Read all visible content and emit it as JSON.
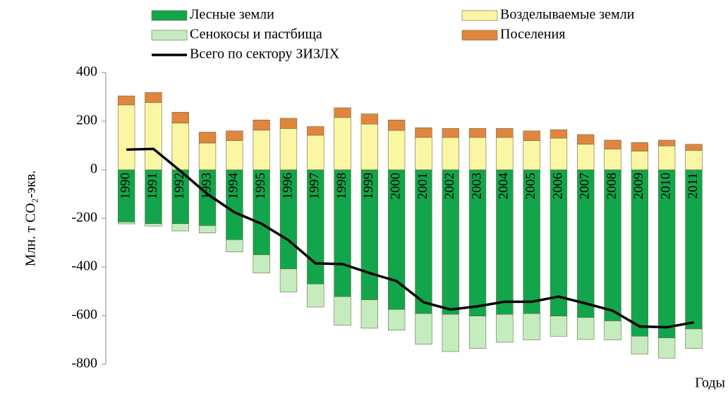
{
  "chart_data": {
    "type": "bar",
    "y_label": "Млн. т CO₂-экв.",
    "x_label": "Годы",
    "categories": [
      "1990",
      "1991",
      "1992",
      "1993",
      "1994",
      "1995",
      "1996",
      "1997",
      "1998",
      "1999",
      "2000",
      "2001",
      "2002",
      "2003",
      "2004",
      "2005",
      "2006",
      "2007",
      "2008",
      "2009",
      "2010",
      "2011"
    ],
    "series": [
      {
        "name": "Лесные земли",
        "color": "#13a54b",
        "values": [
          -215,
          -222,
          -222,
          -230,
          -288,
          -350,
          -408,
          -470,
          -522,
          -535,
          -575,
          -592,
          -595,
          -602,
          -595,
          -592,
          -602,
          -608,
          -622,
          -685,
          -692,
          -655
        ]
      },
      {
        "name": "Возделываемые земли",
        "color": "#fbf6a3",
        "values": [
          267,
          277,
          192,
          110,
          120,
          163,
          170,
          142,
          215,
          188,
          162,
          133,
          133,
          133,
          133,
          120,
          130,
          105,
          85,
          77,
          98,
          80
        ]
      },
      {
        "name": "Сенокосы и пастбища",
        "color": "#c5ecbf",
        "values": [
          -8,
          -10,
          -30,
          -30,
          -50,
          -75,
          -95,
          -95,
          -118,
          -117,
          -85,
          -126,
          -153,
          -133,
          -115,
          -108,
          -83,
          -90,
          -78,
          -73,
          -83,
          -80
        ]
      },
      {
        "name": "Поселения",
        "color": "#e0863c",
        "values": [
          37,
          41,
          45,
          45,
          40,
          42,
          42,
          36,
          40,
          42,
          43,
          40,
          37,
          37,
          37,
          40,
          35,
          40,
          37,
          35,
          24,
          25
        ]
      },
      {
        "name": "Всего по сектору  ЗИЗЛХ",
        "color": "#000000",
        "type": "line",
        "values": [
          83,
          86,
          -5,
          -100,
          -175,
          -222,
          -290,
          -385,
          -388,
          -425,
          -458,
          -545,
          -575,
          -562,
          -543,
          -543,
          -522,
          -550,
          -580,
          -645,
          -648,
          -628
        ]
      }
    ],
    "ylim": [
      -800,
      400
    ],
    "yticks": [
      -800,
      -600,
      -400,
      -200,
      0,
      200,
      400
    ]
  }
}
